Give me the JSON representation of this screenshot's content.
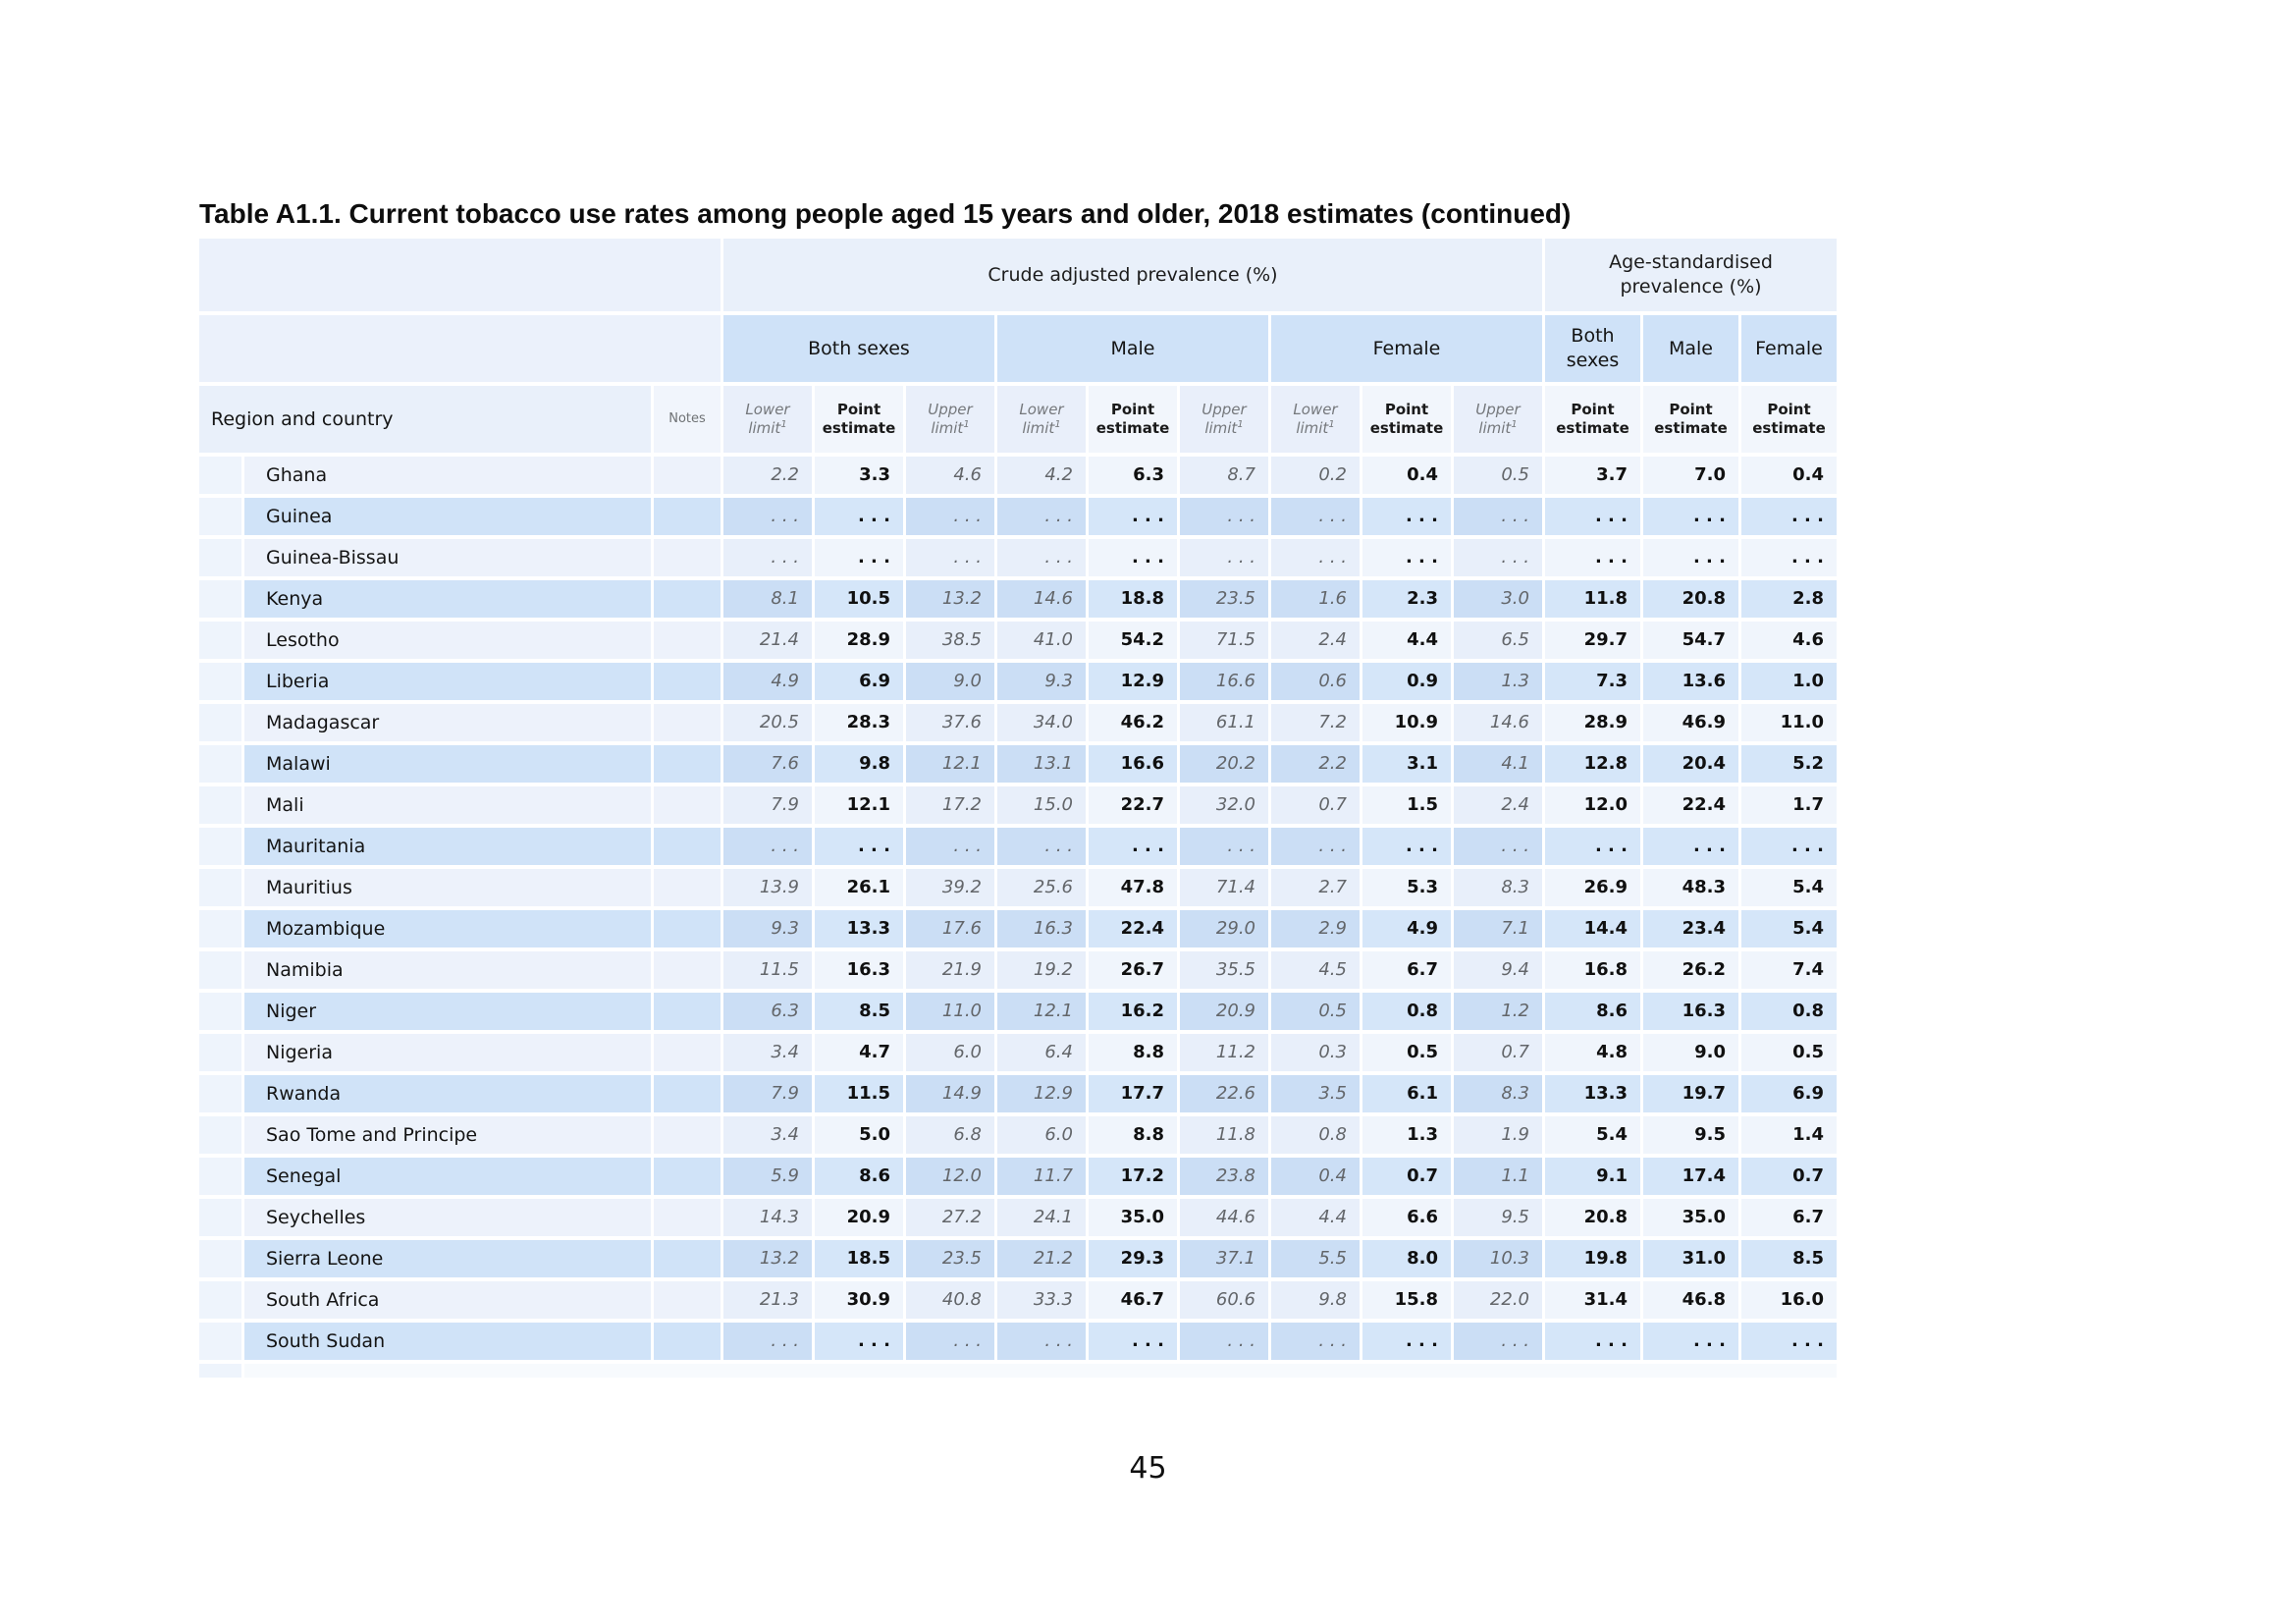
{
  "page": {
    "title": "Table A1.1. Current tobacco use rates among people aged 15 years and older, 2018 estimates (continued)",
    "page_number": "45"
  },
  "table": {
    "band_crude": "Crude adjusted prevalence (%)",
    "band_age": "Age-standardised prevalence (%)",
    "groups": {
      "both": "Both sexes",
      "male": "Male",
      "female": "Female"
    },
    "col_region": "Region and country",
    "col_notes": "Notes",
    "col_lower": "Lower limit",
    "col_point": "Point estimate",
    "col_upper": "Upper limit",
    "sup": "1",
    "missing": ". . .",
    "column_types": [
      "lim",
      "pt",
      "lim",
      "lim",
      "pt",
      "lim",
      "lim",
      "pt",
      "lim",
      "pt",
      "pt",
      "pt"
    ],
    "rows": [
      {
        "country": "Ghana",
        "values": [
          "2.2",
          "3.3",
          "4.6",
          "4.2",
          "6.3",
          "8.7",
          "0.2",
          "0.4",
          "0.5",
          "3.7",
          "7.0",
          "0.4"
        ]
      },
      {
        "country": "Guinea",
        "values": [
          ". . .",
          ". . .",
          ". . .",
          ". . .",
          ". . .",
          ". . .",
          ". . .",
          ". . .",
          ". . .",
          ". . .",
          ". . .",
          ". . ."
        ]
      },
      {
        "country": "Guinea-Bissau",
        "values": [
          ". . .",
          ". . .",
          ". . .",
          ". . .",
          ". . .",
          ". . .",
          ". . .",
          ". . .",
          ". . .",
          ". . .",
          ". . .",
          ". . ."
        ]
      },
      {
        "country": "Kenya",
        "values": [
          "8.1",
          "10.5",
          "13.2",
          "14.6",
          "18.8",
          "23.5",
          "1.6",
          "2.3",
          "3.0",
          "11.8",
          "20.8",
          "2.8"
        ]
      },
      {
        "country": "Lesotho",
        "values": [
          "21.4",
          "28.9",
          "38.5",
          "41.0",
          "54.2",
          "71.5",
          "2.4",
          "4.4",
          "6.5",
          "29.7",
          "54.7",
          "4.6"
        ]
      },
      {
        "country": "Liberia",
        "values": [
          "4.9",
          "6.9",
          "9.0",
          "9.3",
          "12.9",
          "16.6",
          "0.6",
          "0.9",
          "1.3",
          "7.3",
          "13.6",
          "1.0"
        ]
      },
      {
        "country": "Madagascar",
        "values": [
          "20.5",
          "28.3",
          "37.6",
          "34.0",
          "46.2",
          "61.1",
          "7.2",
          "10.9",
          "14.6",
          "28.9",
          "46.9",
          "11.0"
        ]
      },
      {
        "country": "Malawi",
        "values": [
          "7.6",
          "9.8",
          "12.1",
          "13.1",
          "16.6",
          "20.2",
          "2.2",
          "3.1",
          "4.1",
          "12.8",
          "20.4",
          "5.2"
        ]
      },
      {
        "country": "Mali",
        "values": [
          "7.9",
          "12.1",
          "17.2",
          "15.0",
          "22.7",
          "32.0",
          "0.7",
          "1.5",
          "2.4",
          "12.0",
          "22.4",
          "1.7"
        ]
      },
      {
        "country": "Mauritania",
        "values": [
          ". . .",
          ". . .",
          ". . .",
          ". . .",
          ". . .",
          ". . .",
          ". . .",
          ". . .",
          ". . .",
          ". . .",
          ". . .",
          ". . ."
        ]
      },
      {
        "country": "Mauritius",
        "values": [
          "13.9",
          "26.1",
          "39.2",
          "25.6",
          "47.8",
          "71.4",
          "2.7",
          "5.3",
          "8.3",
          "26.9",
          "48.3",
          "5.4"
        ]
      },
      {
        "country": "Mozambique",
        "values": [
          "9.3",
          "13.3",
          "17.6",
          "16.3",
          "22.4",
          "29.0",
          "2.9",
          "4.9",
          "7.1",
          "14.4",
          "23.4",
          "5.4"
        ]
      },
      {
        "country": "Namibia",
        "values": [
          "11.5",
          "16.3",
          "21.9",
          "19.2",
          "26.7",
          "35.5",
          "4.5",
          "6.7",
          "9.4",
          "16.8",
          "26.2",
          "7.4"
        ]
      },
      {
        "country": "Niger",
        "values": [
          "6.3",
          "8.5",
          "11.0",
          "12.1",
          "16.2",
          "20.9",
          "0.5",
          "0.8",
          "1.2",
          "8.6",
          "16.3",
          "0.8"
        ]
      },
      {
        "country": "Nigeria",
        "values": [
          "3.4",
          "4.7",
          "6.0",
          "6.4",
          "8.8",
          "11.2",
          "0.3",
          "0.5",
          "0.7",
          "4.8",
          "9.0",
          "0.5"
        ]
      },
      {
        "country": "Rwanda",
        "values": [
          "7.9",
          "11.5",
          "14.9",
          "12.9",
          "17.7",
          "22.6",
          "3.5",
          "6.1",
          "8.3",
          "13.3",
          "19.7",
          "6.9"
        ]
      },
      {
        "country": "Sao Tome and Principe",
        "values": [
          "3.4",
          "5.0",
          "6.8",
          "6.0",
          "8.8",
          "11.8",
          "0.8",
          "1.3",
          "1.9",
          "5.4",
          "9.5",
          "1.4"
        ]
      },
      {
        "country": "Senegal",
        "values": [
          "5.9",
          "8.6",
          "12.0",
          "11.7",
          "17.2",
          "23.8",
          "0.4",
          "0.7",
          "1.1",
          "9.1",
          "17.4",
          "0.7"
        ]
      },
      {
        "country": "Seychelles",
        "values": [
          "14.3",
          "20.9",
          "27.2",
          "24.1",
          "35.0",
          "44.6",
          "4.4",
          "6.6",
          "9.5",
          "20.8",
          "35.0",
          "6.7"
        ]
      },
      {
        "country": "Sierra Leone",
        "values": [
          "13.2",
          "18.5",
          "23.5",
          "21.2",
          "29.3",
          "37.1",
          "5.5",
          "8.0",
          "10.3",
          "19.8",
          "31.0",
          "8.5"
        ]
      },
      {
        "country": "South Africa",
        "values": [
          "21.3",
          "30.9",
          "40.8",
          "33.3",
          "46.7",
          "60.6",
          "9.8",
          "15.8",
          "22.0",
          "31.4",
          "46.8",
          "16.0"
        ]
      },
      {
        "country": "South Sudan",
        "values": [
          ". . .",
          ". . .",
          ". . .",
          ". . .",
          ". . .",
          ". . .",
          ". . .",
          ". . .",
          ". . .",
          ". . .",
          ". . .",
          ". . ."
        ]
      }
    ],
    "colors": {
      "group_header": "#cfe2f8",
      "band_header": "#e9f0fa",
      "row_light": "#edf2fb",
      "row_blue": "#d0e3f8",
      "limit_text": "#63666a",
      "point_text": "#101010"
    }
  }
}
